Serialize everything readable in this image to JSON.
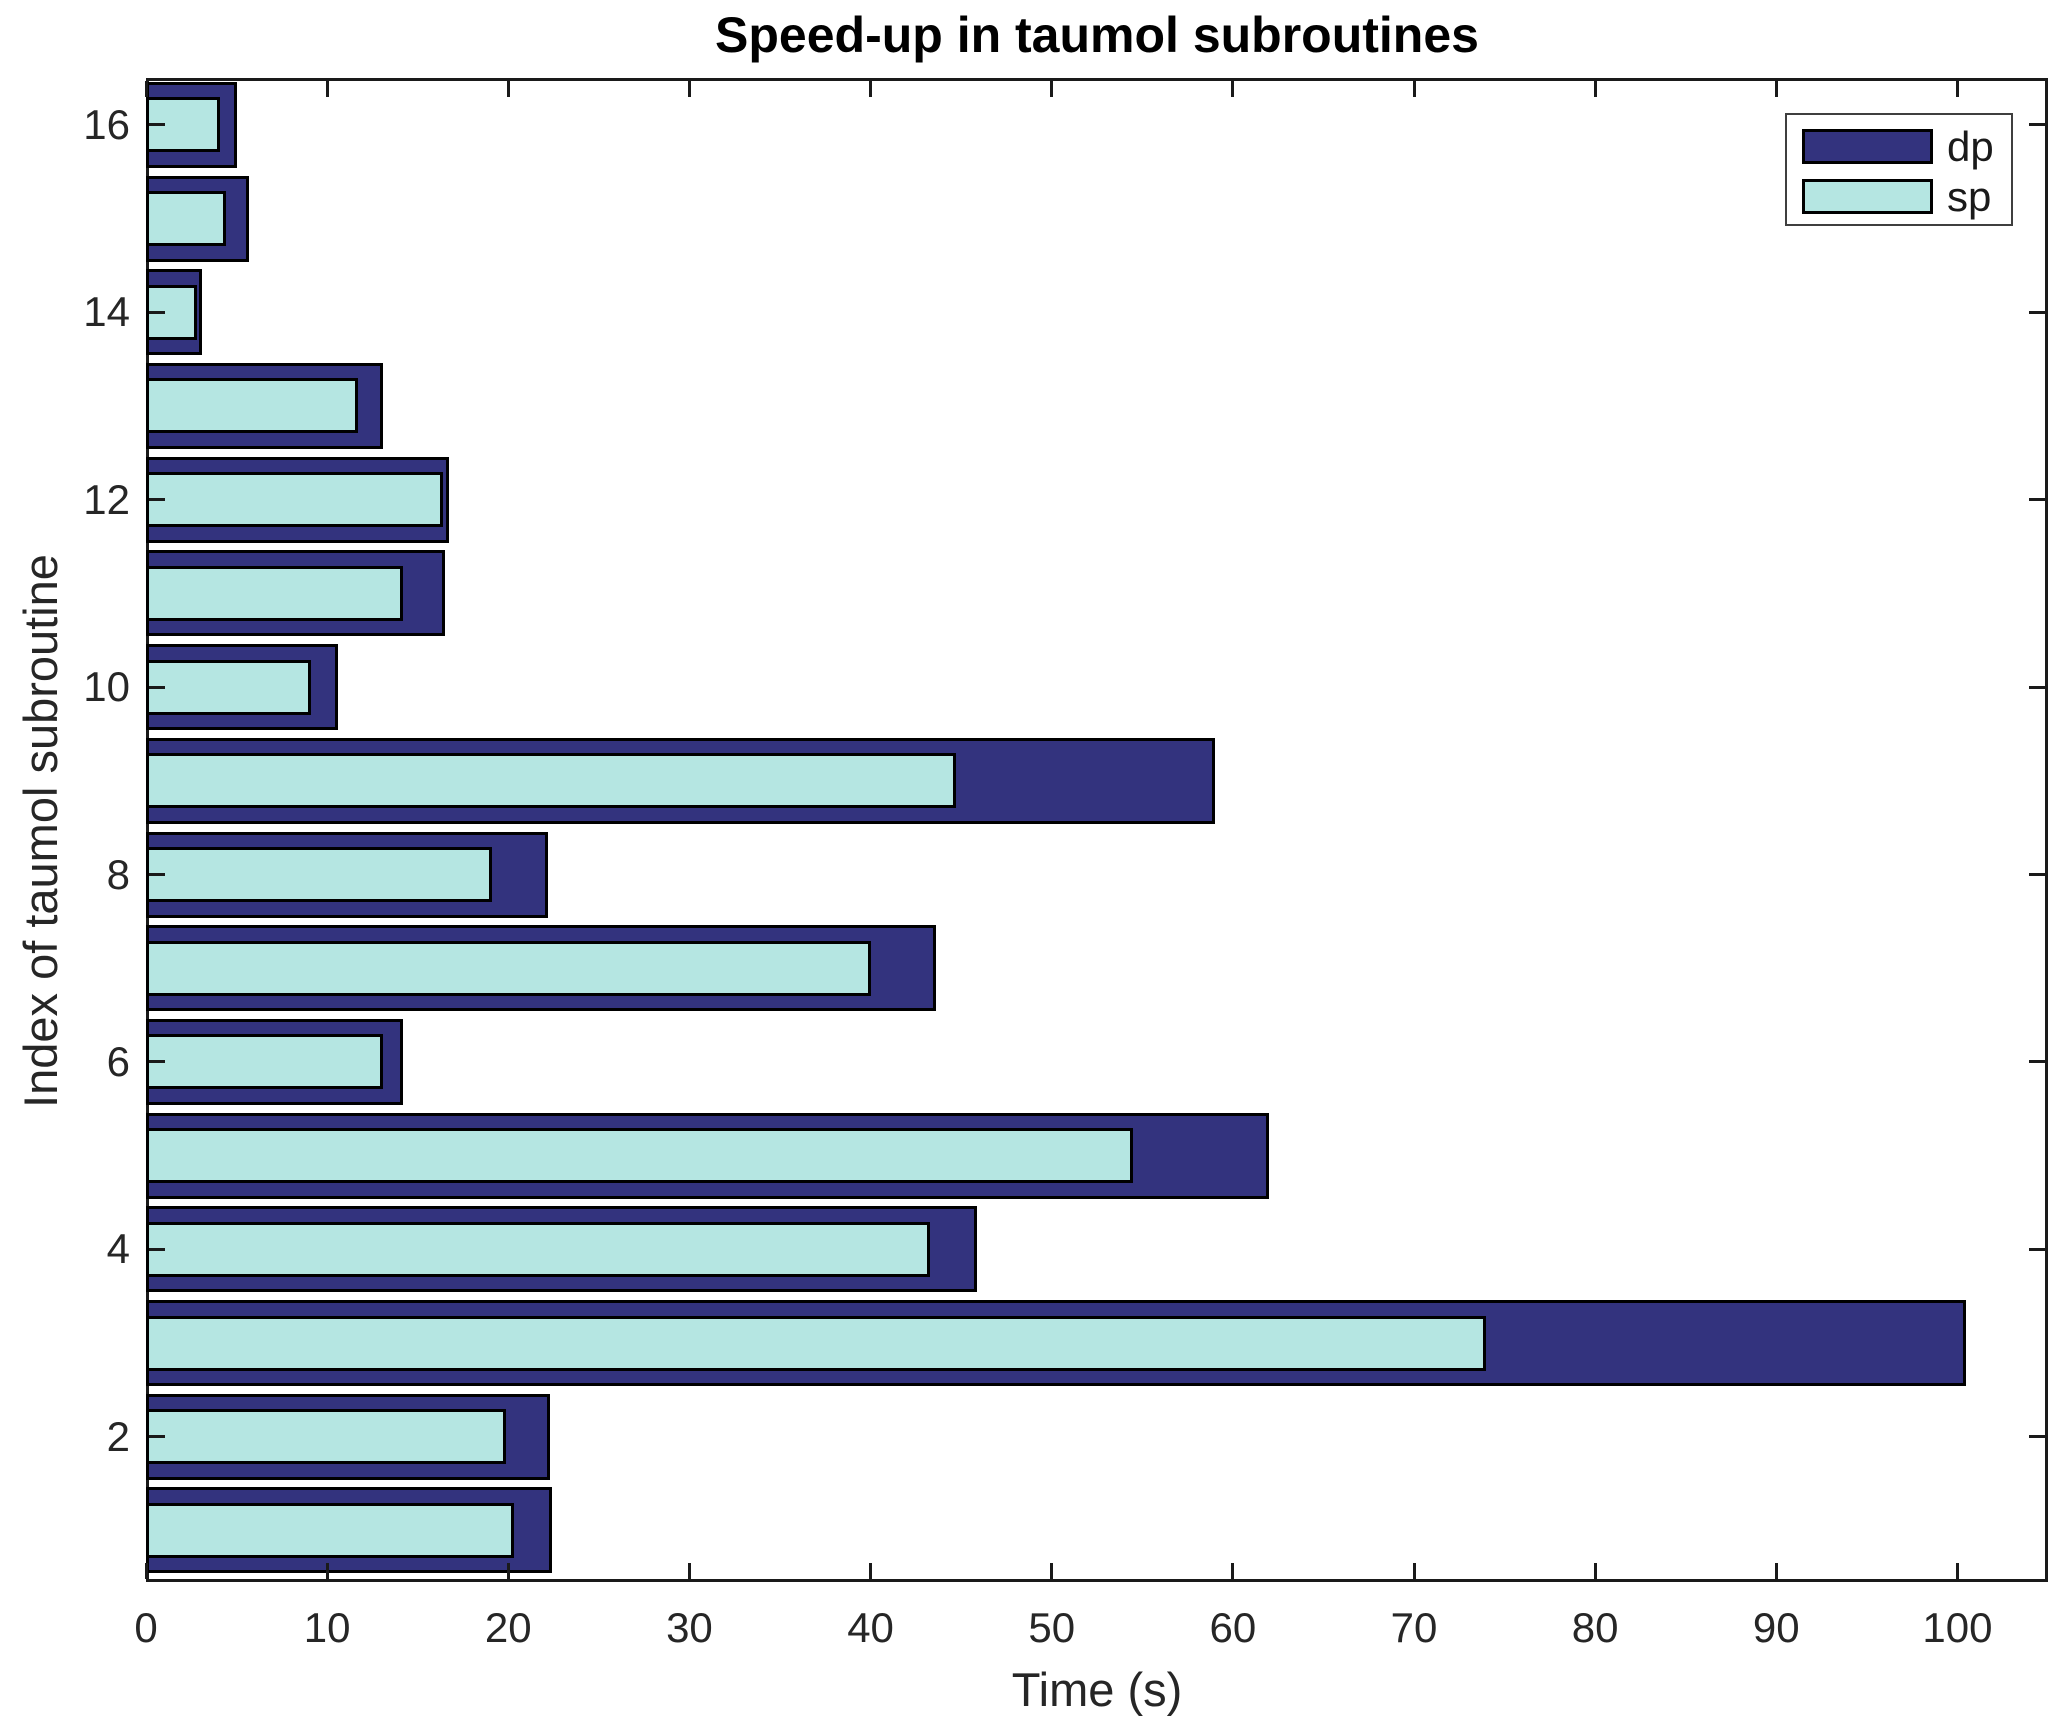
{
  "figure": {
    "background": "#ffffff",
    "axis_color": "#1a1a1a",
    "text_color": "#262626"
  },
  "chart_data": {
    "type": "bar",
    "orientation": "horizontal",
    "title": "Speed-up in taumol subroutines",
    "xlabel": "Time (s)",
    "ylabel": "Index of taumol subroutine",
    "xlim": [
      0,
      105
    ],
    "ylim": [
      0.45,
      16.5
    ],
    "xticks": [
      0,
      10,
      20,
      30,
      40,
      50,
      60,
      70,
      80,
      90,
      100
    ],
    "yticks": [
      2,
      4,
      6,
      8,
      10,
      12,
      14,
      16
    ],
    "categories": [
      1,
      2,
      3,
      4,
      5,
      6,
      7,
      8,
      9,
      10,
      11,
      12,
      13,
      14,
      15,
      16
    ],
    "series": [
      {
        "name": "dp",
        "color": "#33337E",
        "values": [
          22.4,
          22.3,
          100.5,
          45.9,
          62.0,
          14.2,
          43.6,
          22.2,
          59.0,
          10.6,
          16.5,
          16.7,
          13.1,
          3.1,
          5.7,
          5.0
        ]
      },
      {
        "name": "sp",
        "color": "#B5E6E2",
        "values": [
          20.3,
          19.9,
          74.0,
          43.3,
          54.5,
          13.1,
          40.0,
          19.1,
          44.7,
          9.1,
          14.2,
          16.4,
          11.7,
          2.8,
          4.4,
          4.1
        ]
      }
    ],
    "bar_edge_color": "#000000",
    "legend": {
      "position": "top-right",
      "entries": [
        "dp",
        "sp"
      ]
    },
    "grid": false
  }
}
